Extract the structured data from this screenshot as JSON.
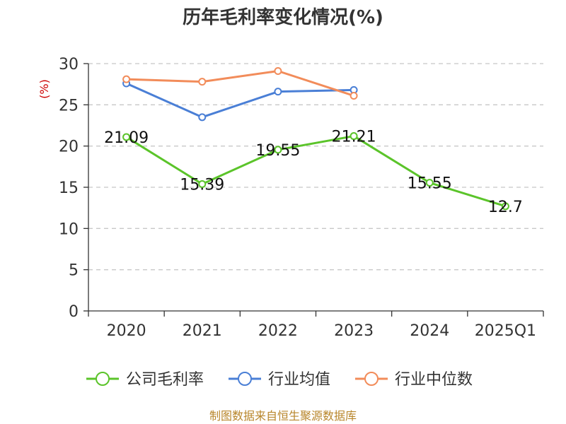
{
  "chart_data": {
    "type": "line",
    "title": "历年毛利率变化情况(%)",
    "ylabel": "(%)",
    "categories": [
      "2020",
      "2021",
      "2022",
      "2023",
      "2024",
      "2025Q1"
    ],
    "ylim": [
      0,
      30
    ],
    "yticks": [
      "0",
      "5",
      "10",
      "15",
      "20",
      "25",
      "30"
    ],
    "grid": true,
    "legend_position": "bottom",
    "series": [
      {
        "name": "公司毛利率",
        "color": "#5bc42a",
        "values": [
          21.09,
          15.39,
          19.55,
          21.21,
          15.55,
          12.7
        ],
        "labels": [
          "21.09",
          "15.39",
          "19.55",
          "21.21",
          "15.55",
          "12.7"
        ]
      },
      {
        "name": "行业均值",
        "color": "#4a7fd6",
        "values": [
          27.6,
          23.5,
          26.6,
          26.8,
          null,
          null
        ]
      },
      {
        "name": "行业中位数",
        "color": "#f28c5a",
        "values": [
          28.1,
          27.8,
          29.1,
          26.1,
          null,
          null
        ]
      }
    ]
  },
  "footer": {
    "source": "制图数据来自恒生聚源数据库"
  }
}
